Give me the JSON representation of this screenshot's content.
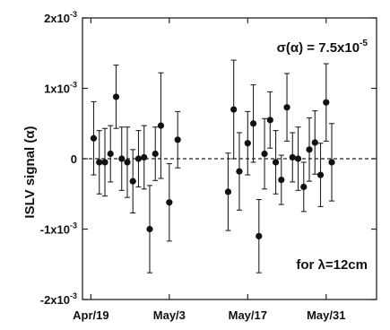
{
  "chart_data": {
    "type": "scatter",
    "ylabel": "ISLV signal (α)",
    "xlabel": "",
    "ylim": [
      -0.002,
      0.002
    ],
    "y_ticks": [
      {
        "value": 0.002,
        "mant": "2x10",
        "exp": "-3"
      },
      {
        "value": 0.001,
        "mant": "1x10",
        "exp": "-3"
      },
      {
        "value": 0,
        "mant": "0",
        "exp": ""
      },
      {
        "value": -0.001,
        "mant": "-1x10",
        "exp": "-3"
      },
      {
        "value": -0.002,
        "mant": "-2x10",
        "exp": "-3"
      }
    ],
    "x_ticks": [
      {
        "day": 0,
        "label": "Apr/19"
      },
      {
        "day": 14,
        "label": "May/3"
      },
      {
        "day": 28,
        "label": "May/17"
      },
      {
        "day": 42,
        "label": "May/31"
      }
    ],
    "xlim_days": [
      -1.5,
      51
    ],
    "zero_line": "dashed",
    "annotations": [
      {
        "id": "sigma",
        "base": "σ(α) = 7.5x10",
        "exp": "-5"
      },
      {
        "id": "lambda",
        "base": "for λ=12cm",
        "exp": ""
      }
    ],
    "points": [
      {
        "x": 0.5,
        "y": 0.00029,
        "err": 0.00052
      },
      {
        "x": 1.5,
        "y": -5e-05,
        "err": 0.00045
      },
      {
        "x": 2.5,
        "y": -5e-05,
        "err": 0.00048
      },
      {
        "x": 3.5,
        "y": 7e-05,
        "err": 0.0004
      },
      {
        "x": 4.5,
        "y": 0.00088,
        "err": 0.00045
      },
      {
        "x": 5.5,
        "y": 0.0,
        "err": 0.00045
      },
      {
        "x": 6.5,
        "y": -5e-05,
        "err": 0.0005
      },
      {
        "x": 7.5,
        "y": -0.00032,
        "err": 0.00045
      },
      {
        "x": 8.5,
        "y": 0.0,
        "err": 0.0004
      },
      {
        "x": 9.5,
        "y": 2e-05,
        "err": 0.00045
      },
      {
        "x": 10.5,
        "y": -0.001,
        "err": 0.00062
      },
      {
        "x": 11.5,
        "y": 7e-05,
        "err": 0.00038
      },
      {
        "x": 12.5,
        "y": 0.00047,
        "err": 0.00075
      },
      {
        "x": 14.0,
        "y": -0.00062,
        "err": 0.00055
      },
      {
        "x": 15.5,
        "y": 0.00027,
        "err": 0.0004
      },
      {
        "x": 24.5,
        "y": -0.00047,
        "err": 0.00055
      },
      {
        "x": 25.5,
        "y": 0.0007,
        "err": 0.0007
      },
      {
        "x": 26.5,
        "y": -0.00018,
        "err": 0.00055
      },
      {
        "x": 28.0,
        "y": 0.00022,
        "err": 0.00045
      },
      {
        "x": 29.0,
        "y": 0.0005,
        "err": 0.00055
      },
      {
        "x": 30.0,
        "y": -0.0011,
        "err": 0.00052
      },
      {
        "x": 31.0,
        "y": 7e-05,
        "err": 0.0005
      },
      {
        "x": 32.0,
        "y": 0.00055,
        "err": 0.0004
      },
      {
        "x": 33.0,
        "y": -5e-05,
        "err": 0.00045
      },
      {
        "x": 34.0,
        "y": -0.0003,
        "err": 0.00035
      },
      {
        "x": 35.0,
        "y": 0.00073,
        "err": 0.00048
      },
      {
        "x": 36.0,
        "y": 2e-05,
        "err": 0.00035
      },
      {
        "x": 37.0,
        "y": 0.0,
        "err": 0.00045
      },
      {
        "x": 38.0,
        "y": -0.0004,
        "err": 0.00035
      },
      {
        "x": 39.0,
        "y": 0.00013,
        "err": 0.00045
      },
      {
        "x": 40.0,
        "y": 0.00023,
        "err": 0.00045
      },
      {
        "x": 41.0,
        "y": -0.00023,
        "err": 0.00045
      },
      {
        "x": 42.0,
        "y": 0.0008,
        "err": 0.00055
      },
      {
        "x": 43.0,
        "y": -5e-05,
        "err": 0.00055
      }
    ]
  }
}
